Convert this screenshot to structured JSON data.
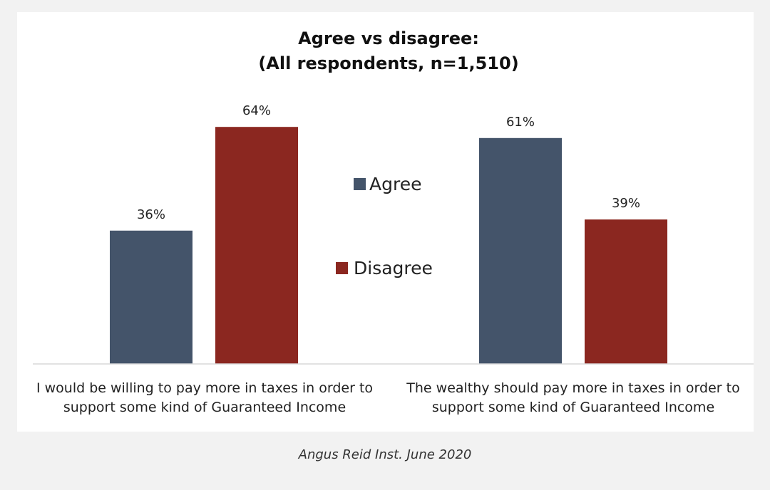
{
  "chart_data": {
    "type": "bar",
    "title": [
      "Agree vs disagree:",
      "(All respondents,  n=1,510)"
    ],
    "categories": [
      [
        "I would be willing to pay more in taxes in order to",
        "support some kind of Guaranteed Income"
      ],
      [
        "The wealthy should pay more in taxes in order to",
        "support some kind of Guaranteed Income"
      ]
    ],
    "series": [
      {
        "name": "Agree",
        "values": [
          36,
          61
        ],
        "labels": [
          "36%",
          "61%"
        ],
        "color": "#44546a"
      },
      {
        "name": "Disagree",
        "values": [
          64,
          39
        ],
        "labels": [
          "64%",
          "39%"
        ],
        "color": "#8b2720"
      }
    ],
    "ylim": [
      0,
      100
    ],
    "grid": false,
    "legend_position": "center"
  },
  "source": "Angus Reid Inst. June 2020"
}
